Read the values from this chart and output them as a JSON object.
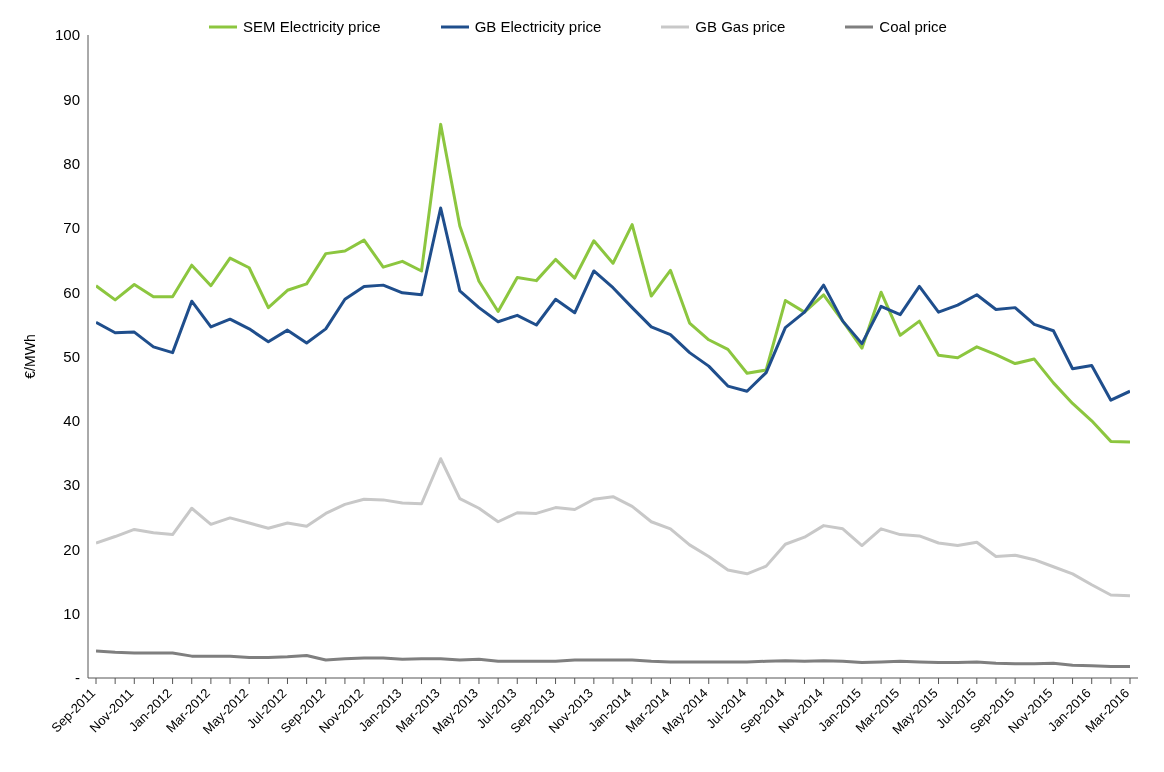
{
  "chart_data": {
    "type": "line",
    "ylabel": "€/MWh",
    "ylim": [
      0,
      100
    ],
    "yticks": [
      {
        "value": 0,
        "label": "-"
      },
      10,
      20,
      30,
      40,
      50,
      60,
      70,
      80,
      90,
      100
    ],
    "grid": false,
    "legend": "top",
    "marker": "none",
    "line_style": "solid",
    "categories": [
      "Sep-2011",
      null,
      "Nov-2011",
      null,
      "Jan-2012",
      null,
      "Mar-2012",
      null,
      "May-2012",
      null,
      "Jul-2012",
      null,
      "Sep-2012",
      null,
      "Nov-2012",
      null,
      "Jan-2013",
      null,
      "Mar-2013",
      null,
      "May-2013",
      null,
      "Jul-2013",
      null,
      "Sep-2013",
      null,
      "Nov-2013",
      null,
      "Jan-2014",
      null,
      "Mar-2014",
      null,
      "May-2014",
      null,
      "Jul-2014",
      null,
      "Sep-2014",
      null,
      "Nov-2014",
      null,
      "Jan-2015",
      null,
      "Mar-2015",
      null,
      "May-2015",
      null,
      "Jul-2015",
      null,
      "Sep-2015",
      null,
      "Nov-2015",
      null,
      "Jan-2016",
      null,
      "Mar-2016"
    ],
    "series": [
      {
        "name": "SEM Electricity price",
        "color": "#8cc63f",
        "values": [
          61,
          58.8,
          61.2,
          59.3,
          59.3,
          64.2,
          61,
          65.3,
          63.8,
          57.6,
          60.3,
          61.3,
          66,
          66.4,
          68.1,
          63.9,
          64.8,
          63.3,
          86.1,
          70.3,
          61.7,
          57,
          62.3,
          61.8,
          65.1,
          62.2,
          68,
          64.5,
          70.5,
          59.4,
          63.4,
          55.2,
          52.6,
          51.1,
          47.4,
          47.9,
          58.7,
          56.9,
          59.6,
          55.5,
          51.3,
          60,
          53.3,
          55.5,
          50.2,
          49.8,
          51.5,
          50.3,
          48.9,
          49.6,
          45.9,
          42.7,
          40,
          36.8,
          36.7
        ]
      },
      {
        "name": "GB Electricity price",
        "color": "#1f4e8c",
        "values": [
          55.3,
          53.7,
          53.8,
          51.5,
          50.6,
          58.6,
          54.6,
          55.8,
          54.3,
          52.3,
          54.1,
          52.1,
          54.3,
          58.9,
          60.9,
          61.1,
          59.9,
          59.6,
          73.1,
          60.2,
          57.6,
          55.4,
          56.4,
          54.9,
          58.9,
          56.8,
          63.3,
          60.7,
          57.6,
          54.6,
          53.4,
          50.6,
          48.5,
          45.4,
          44.6,
          47.5,
          54.5,
          56.9,
          61.1,
          55.5,
          52,
          57.8,
          56.5,
          60.9,
          56.9,
          58,
          59.6,
          57.3,
          57.6,
          55,
          54,
          48.1,
          48.6,
          43.2,
          44.6
        ]
      },
      {
        "name": "GB Gas price",
        "color": "#c8c8c8",
        "values": [
          21,
          22,
          23.1,
          22.6,
          22.3,
          26.4,
          23.9,
          24.9,
          24.1,
          23.3,
          24.1,
          23.6,
          25.6,
          27,
          27.8,
          27.7,
          27.2,
          27.1,
          34.1,
          27.9,
          26.4,
          24.3,
          25.7,
          25.6,
          26.5,
          26.2,
          27.8,
          28.2,
          26.7,
          24.3,
          23.2,
          20.7,
          18.9,
          16.8,
          16.2,
          17.4,
          20.8,
          21.9,
          23.7,
          23.2,
          20.6,
          23.2,
          22.3,
          22.1,
          21,
          20.6,
          21.1,
          18.9,
          19.1,
          18.4,
          17.3,
          16.2,
          14.5,
          12.9,
          12.8
        ]
      },
      {
        "name": "Coal price",
        "color": "#7f7f7f",
        "values": [
          4.2,
          4,
          3.9,
          3.9,
          3.9,
          3.4,
          3.4,
          3.4,
          3.2,
          3.2,
          3.3,
          3.5,
          2.8,
          3,
          3.1,
          3.1,
          2.9,
          3,
          3,
          2.8,
          2.9,
          2.6,
          2.6,
          2.6,
          2.6,
          2.8,
          2.8,
          2.8,
          2.8,
          2.6,
          2.5,
          2.5,
          2.5,
          2.5,
          2.5,
          2.6,
          2.7,
          2.6,
          2.7,
          2.6,
          2.4,
          2.5,
          2.6,
          2.5,
          2.4,
          2.4,
          2.5,
          2.3,
          2.2,
          2.2,
          2.3,
          2,
          1.9,
          1.8,
          1.8
        ]
      }
    ]
  }
}
